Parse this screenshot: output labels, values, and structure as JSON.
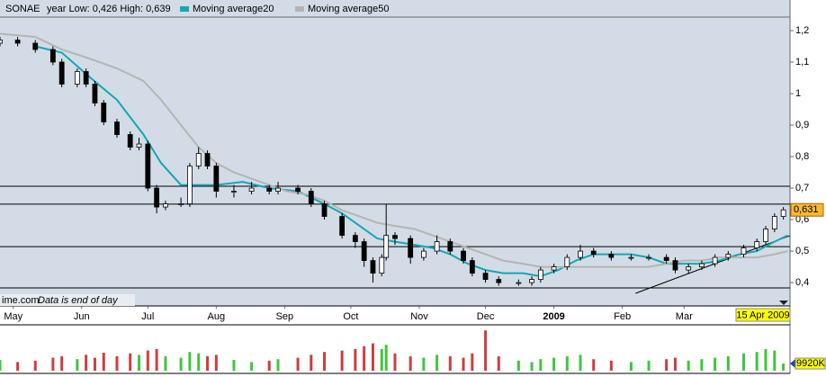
{
  "chart_data": {
    "type": "candlestick",
    "title": "SONAE",
    "subtitle": "year Low: 0,426 High: 0,639",
    "xlim": [
      -6,
      352
    ],
    "ylim": [
      0.326,
      1.24
    ],
    "xticks": [
      {
        "value": 0,
        "label": "May"
      },
      {
        "value": 31,
        "label": "Jun"
      },
      {
        "value": 61,
        "label": "Jul"
      },
      {
        "value": 92,
        "label": "Aug"
      },
      {
        "value": 123,
        "label": "Sep"
      },
      {
        "value": 153,
        "label": "Oct"
      },
      {
        "value": 184,
        "label": "Nov"
      },
      {
        "value": 214,
        "label": "Dec"
      },
      {
        "value": 245,
        "label": "2009"
      },
      {
        "value": 276,
        "label": "Feb"
      },
      {
        "value": 304,
        "label": "Mar"
      }
    ],
    "yticks": [
      {
        "value": 1.2,
        "label": "1,2"
      },
      {
        "value": 1.1,
        "label": "1,1"
      },
      1,
      {
        "value": 0.9,
        "label": "0,9"
      },
      {
        "value": 0.8,
        "label": "0,8"
      },
      {
        "value": 0.7,
        "label": "0,7"
      },
      {
        "value": 0.6,
        "label": "0,6"
      },
      {
        "value": 0.5,
        "label": "0,5"
      },
      {
        "value": 0.4,
        "label": "0,4"
      }
    ],
    "candles": {
      "up_color": "#ffffff",
      "down_color": "#000000",
      "x": [
        -6,
        2,
        10,
        18,
        22,
        29,
        33,
        37,
        41,
        47,
        53,
        57,
        61,
        65,
        69,
        76,
        80,
        84,
        88,
        92,
        100,
        108,
        116,
        120,
        129,
        135,
        141,
        149,
        155,
        159,
        163,
        167,
        169,
        173,
        180,
        186,
        192,
        198,
        204,
        208,
        214,
        220,
        229,
        235,
        239,
        245,
        251,
        257,
        263,
        271,
        280,
        288,
        296,
        300,
        306,
        312,
        318,
        324,
        331,
        337,
        341,
        345,
        349
      ],
      "open": [
        1.16,
        1.17,
        1.16,
        1.14,
        1.1,
        1.03,
        1.07,
        1.03,
        0.97,
        0.91,
        0.87,
        0.83,
        0.84,
        0.7,
        0.64,
        0.65,
        0.65,
        0.77,
        0.81,
        0.77,
        0.69,
        0.69,
        0.7,
        0.69,
        0.7,
        0.69,
        0.65,
        0.61,
        0.55,
        0.53,
        0.47,
        0.43,
        0.48,
        0.55,
        0.54,
        0.48,
        0.5,
        0.53,
        0.5,
        0.47,
        0.43,
        0.41,
        0.4,
        0.4,
        0.41,
        0.44,
        0.45,
        0.48,
        0.5,
        0.49,
        0.48,
        0.48,
        0.48,
        0.47,
        0.44,
        0.45,
        0.46,
        0.48,
        0.49,
        0.51,
        0.53,
        0.57,
        0.61
      ],
      "high": [
        1.18,
        1.18,
        1.17,
        1.15,
        1.11,
        1.08,
        1.08,
        1.04,
        0.98,
        0.92,
        0.88,
        0.86,
        0.85,
        0.71,
        0.66,
        0.67,
        0.78,
        0.83,
        0.82,
        0.78,
        0.71,
        0.72,
        0.71,
        0.72,
        0.71,
        0.7,
        0.66,
        0.62,
        0.56,
        0.54,
        0.48,
        0.49,
        0.65,
        0.56,
        0.55,
        0.51,
        0.55,
        0.54,
        0.51,
        0.48,
        0.44,
        0.42,
        0.41,
        0.42,
        0.45,
        0.46,
        0.49,
        0.52,
        0.51,
        0.5,
        0.49,
        0.49,
        0.49,
        0.48,
        0.46,
        0.47,
        0.49,
        0.5,
        0.52,
        0.54,
        0.58,
        0.62,
        0.64
      ],
      "low": [
        1.15,
        1.15,
        1.13,
        1.09,
        1.02,
        1.02,
        1.02,
        0.96,
        0.9,
        0.86,
        0.82,
        0.82,
        0.69,
        0.62,
        0.63,
        0.64,
        0.64,
        0.76,
        0.76,
        0.67,
        0.67,
        0.68,
        0.68,
        0.68,
        0.68,
        0.64,
        0.6,
        0.54,
        0.51,
        0.45,
        0.4,
        0.42,
        0.47,
        0.52,
        0.46,
        0.47,
        0.49,
        0.49,
        0.46,
        0.42,
        0.4,
        0.39,
        0.39,
        0.39,
        0.4,
        0.43,
        0.44,
        0.47,
        0.48,
        0.47,
        0.47,
        0.47,
        0.46,
        0.43,
        0.43,
        0.44,
        0.45,
        0.47,
        0.48,
        0.5,
        0.52,
        0.56,
        0.6
      ],
      "close": [
        1.17,
        1.16,
        1.14,
        1.1,
        1.03,
        1.07,
        1.03,
        0.97,
        0.91,
        0.87,
        0.83,
        0.84,
        0.7,
        0.64,
        0.65,
        0.65,
        0.77,
        0.81,
        0.77,
        0.69,
        0.69,
        0.7,
        0.69,
        0.7,
        0.69,
        0.65,
        0.61,
        0.55,
        0.53,
        0.47,
        0.43,
        0.48,
        0.55,
        0.54,
        0.48,
        0.5,
        0.53,
        0.5,
        0.47,
        0.43,
        0.41,
        0.4,
        0.4,
        0.41,
        0.44,
        0.45,
        0.48,
        0.5,
        0.49,
        0.48,
        0.48,
        0.48,
        0.47,
        0.44,
        0.45,
        0.46,
        0.48,
        0.49,
        0.51,
        0.53,
        0.57,
        0.61,
        0.631
      ]
    },
    "close_label": "0,631",
    "series": [
      {
        "name": "Moving average20",
        "color": "#12a8b4",
        "x": [
          10,
          22,
          35,
          47,
          59,
          67,
          76,
          84,
          92,
          104,
          116,
          129,
          141,
          149,
          157,
          165,
          173,
          182,
          190,
          198,
          206,
          214,
          222,
          231,
          239,
          247,
          255,
          263,
          271,
          280,
          288,
          296,
          304,
          312,
          320,
          329,
          337,
          345,
          351
        ],
        "values": [
          1.15,
          1.13,
          1.05,
          0.98,
          0.87,
          0.78,
          0.71,
          0.71,
          0.71,
          0.72,
          0.7,
          0.69,
          0.65,
          0.62,
          0.58,
          0.54,
          0.53,
          0.52,
          0.51,
          0.49,
          0.46,
          0.44,
          0.43,
          0.43,
          0.42,
          0.44,
          0.47,
          0.49,
          0.49,
          0.49,
          0.48,
          0.46,
          0.46,
          0.46,
          0.47,
          0.49,
          0.5,
          0.53,
          0.55
        ]
      },
      {
        "name": "Moving average50",
        "color": "#b4b4b4",
        "x": [
          -6,
          10,
          22,
          35,
          47,
          59,
          67,
          76,
          84,
          92,
          100,
          108,
          116,
          124,
          133,
          141,
          149,
          157,
          165,
          173,
          182,
          190,
          198,
          206,
          214,
          222,
          231,
          239,
          247,
          255,
          263,
          271,
          280,
          288,
          296,
          304,
          312,
          320,
          329,
          337,
          345,
          351
        ],
        "values": [
          1.19,
          1.18,
          1.14,
          1.11,
          1.08,
          1.04,
          0.98,
          0.9,
          0.83,
          0.78,
          0.75,
          0.73,
          0.71,
          0.69,
          0.68,
          0.66,
          0.63,
          0.61,
          0.59,
          0.58,
          0.57,
          0.55,
          0.53,
          0.51,
          0.49,
          0.47,
          0.46,
          0.45,
          0.45,
          0.45,
          0.45,
          0.45,
          0.45,
          0.45,
          0.46,
          0.47,
          0.47,
          0.48,
          0.48,
          0.48,
          0.49,
          0.5
        ]
      }
    ],
    "hlines": [
      0.706,
      0.649,
      0.514,
      0.383
    ],
    "trendline": {
      "x": [
        282,
        352
      ],
      "y": [
        0.366,
        0.549
      ]
    },
    "volume": {
      "up_color": "#3cc83c",
      "down_color": "#d23c3c",
      "ylim": [
        0,
        60000
      ],
      "values": [
        15000,
        12000,
        14000,
        18000,
        20000,
        16000,
        22000,
        18000,
        25000,
        20000,
        24000,
        22000,
        28000,
        30000,
        20000,
        18000,
        26000,
        24000,
        20000,
        22000,
        15000,
        12000,
        14000,
        16000,
        18000,
        22000,
        26000,
        28000,
        30000,
        34000,
        38000,
        30000,
        36000,
        24000,
        20000,
        18000,
        22000,
        20000,
        18000,
        24000,
        56000,
        20000,
        14000,
        12000,
        16000,
        18000,
        20000,
        22000,
        16000,
        14000,
        12000,
        14000,
        16000,
        18000,
        14000,
        16000,
        18000,
        20000,
        24000,
        26000,
        30000,
        28000,
        9920
      ],
      "last_label": "9920K"
    },
    "date_label": "15 Apr 2009",
    "footer": {
      "source": "ime.com",
      "note": "Data is end of day"
    }
  }
}
